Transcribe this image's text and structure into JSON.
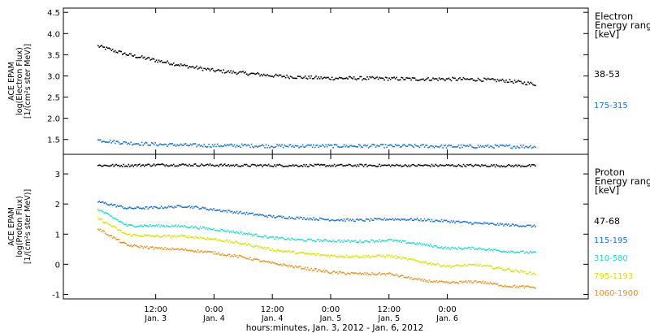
{
  "chart_data": [
    {
      "type": "scatter",
      "panel": "electron",
      "ylabel_lines": [
        "ACE EPAM",
        "log(Electron Flux)",
        "[1/(cm²s ster MeV)]"
      ],
      "ylim": [
        1.15,
        4.6
      ],
      "yticks": [
        "1.5",
        "2.0",
        "2.5",
        "3.0",
        "3.5",
        "4.0",
        "4.5"
      ],
      "ytick_values": [
        1.5,
        2.0,
        2.5,
        3.0,
        3.5,
        4.0,
        4.5
      ],
      "legend_title": [
        "Electron",
        "Energy ranges",
        "[keV]"
      ],
      "series": [
        {
          "name": "38-53",
          "color": "#000000",
          "x": [
            0,
            6,
            12,
            18,
            24,
            30,
            36,
            42,
            48,
            54,
            60,
            66,
            72,
            78,
            84,
            90
          ],
          "y": [
            3.72,
            3.52,
            3.38,
            3.25,
            3.14,
            3.08,
            3.02,
            2.98,
            2.96,
            2.96,
            2.95,
            2.94,
            2.94,
            2.93,
            2.9,
            2.82
          ]
        },
        {
          "name": "175-315",
          "color": "#1a6fd0",
          "x": [
            0,
            6,
            12,
            18,
            24,
            30,
            36,
            42,
            48,
            54,
            60,
            66,
            72,
            78,
            84,
            90
          ],
          "y": [
            1.5,
            1.43,
            1.4,
            1.38,
            1.37,
            1.37,
            1.36,
            1.36,
            1.36,
            1.36,
            1.36,
            1.36,
            1.35,
            1.35,
            1.35,
            1.35
          ]
        }
      ]
    },
    {
      "type": "scatter",
      "panel": "proton",
      "ylabel_lines": [
        "ACE EPAM",
        "log(Proton Flux)",
        "[1/(cm²s ster MeV)]"
      ],
      "ylim": [
        -1.15,
        3.65
      ],
      "yticks": [
        "-1",
        "0",
        "1",
        "2",
        "3"
      ],
      "ytick_values": [
        -1,
        0,
        1,
        2,
        3
      ],
      "legend_title": [
        "Proton",
        "Energy ranges",
        "[keV]"
      ],
      "series": [
        {
          "name": "47-68",
          "color": "#000000",
          "x": [
            0,
            6,
            12,
            18,
            24,
            30,
            36,
            42,
            48,
            54,
            60,
            66,
            72,
            78,
            84,
            90
          ],
          "y": [
            3.3,
            3.3,
            3.32,
            3.32,
            3.31,
            3.3,
            3.3,
            3.3,
            3.3,
            3.3,
            3.3,
            3.3,
            3.3,
            3.3,
            3.29,
            3.29
          ]
        },
        {
          "name": "115-195",
          "color": "#1a6fd0",
          "x": [
            0,
            6,
            12,
            18,
            24,
            30,
            36,
            42,
            48,
            54,
            60,
            66,
            72,
            78,
            84,
            90
          ],
          "y": [
            2.1,
            1.88,
            1.9,
            1.95,
            1.83,
            1.72,
            1.6,
            1.55,
            1.5,
            1.48,
            1.52,
            1.5,
            1.45,
            1.38,
            1.33,
            1.28
          ]
        },
        {
          "name": "310-580",
          "color": "#20d8c8",
          "x": [
            0,
            6,
            12,
            18,
            24,
            30,
            36,
            42,
            48,
            54,
            60,
            66,
            72,
            78,
            84,
            90
          ],
          "y": [
            1.85,
            1.3,
            1.3,
            1.28,
            1.18,
            1.05,
            0.9,
            0.82,
            0.8,
            0.78,
            0.82,
            0.7,
            0.55,
            0.55,
            0.45,
            0.4
          ]
        },
        {
          "name": "795-1193",
          "color": "#d8e000",
          "x": [
            0,
            6,
            12,
            18,
            24,
            30,
            36,
            42,
            48,
            54,
            60,
            66,
            72,
            78,
            84,
            90
          ],
          "y": [
            1.55,
            1.0,
            0.95,
            0.95,
            0.85,
            0.7,
            0.5,
            0.38,
            0.3,
            0.28,
            0.3,
            0.12,
            -0.05,
            0.0,
            -0.15,
            -0.3
          ]
        },
        {
          "name": "1060-1900",
          "color": "#e8901c",
          "x": [
            0,
            6,
            12,
            18,
            24,
            30,
            36,
            42,
            48,
            54,
            60,
            66,
            72,
            78,
            84,
            90
          ],
          "y": [
            1.2,
            0.65,
            0.55,
            0.5,
            0.4,
            0.25,
            0.05,
            -0.1,
            -0.25,
            -0.3,
            -0.3,
            -0.5,
            -0.6,
            -0.55,
            -0.7,
            -0.75
          ]
        }
      ]
    }
  ],
  "x_axis": {
    "range_hours": [
      -7,
      101
    ],
    "ticks": [
      {
        "hour": 12,
        "time": "12:00",
        "day": "Jan. 3"
      },
      {
        "hour": 24,
        "time": "0:00",
        "day": "Jan. 4"
      },
      {
        "hour": 36,
        "time": "12:00",
        "day": "Jan. 4"
      },
      {
        "hour": 48,
        "time": "0:00",
        "day": "Jan. 5"
      },
      {
        "hour": 60,
        "time": "12:00",
        "day": "Jan. 5"
      },
      {
        "hour": 72,
        "time": "0:00",
        "day": "Jan. 6"
      }
    ],
    "label": "hours:minutes, Jan.  3, 2012 - Jan.  6, 2012"
  }
}
